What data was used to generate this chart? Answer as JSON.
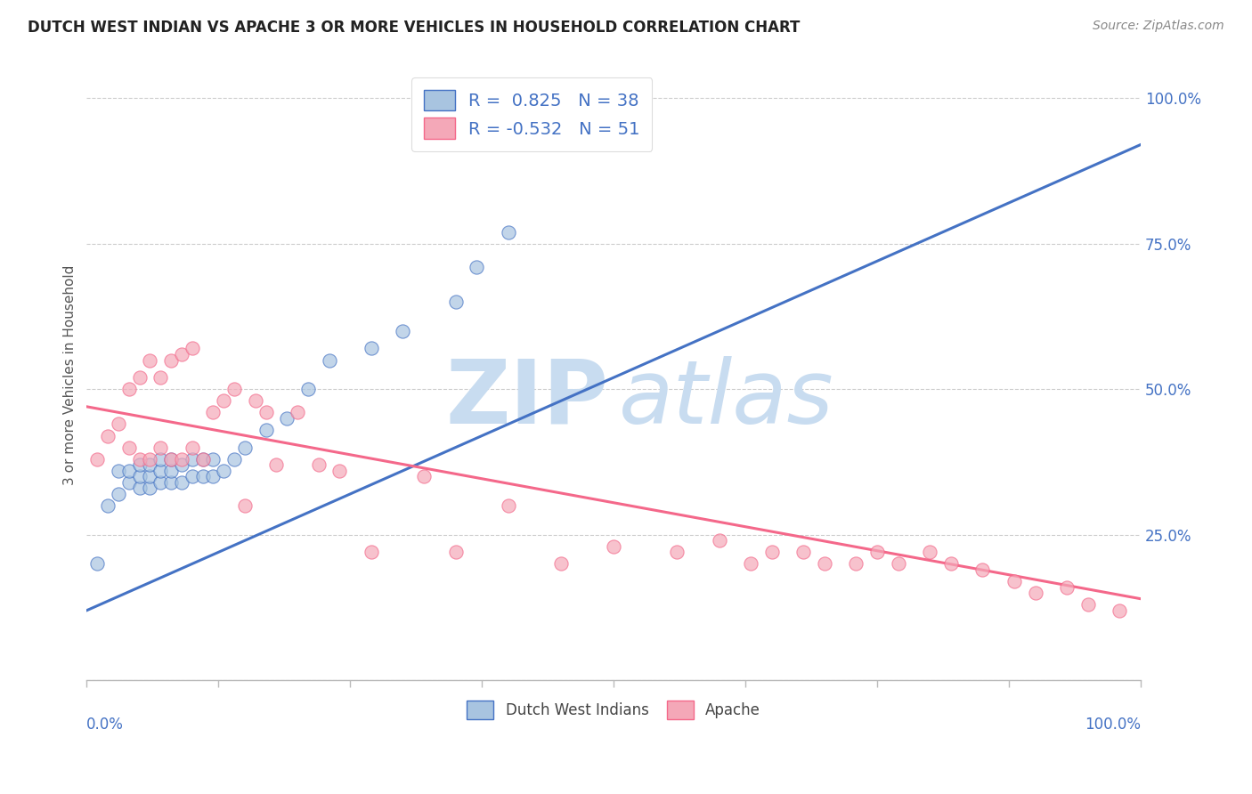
{
  "title": "DUTCH WEST INDIAN VS APACHE 3 OR MORE VEHICLES IN HOUSEHOLD CORRELATION CHART",
  "source": "Source: ZipAtlas.com",
  "ylabel": "3 or more Vehicles in Household",
  "legend_blue_r": "0.825",
  "legend_blue_n": "38",
  "legend_pink_r": "-0.532",
  "legend_pink_n": "51",
  "legend_label_blue": "Dutch West Indians",
  "legend_label_pink": "Apache",
  "blue_color": "#A8C4E0",
  "pink_color": "#F4A8B8",
  "blue_line_color": "#4472C4",
  "pink_line_color": "#F4688A",
  "title_color": "#222222",
  "source_color": "#888888",
  "axis_label_color": "#4472C4",
  "grid_color": "#CCCCCC",
  "background_color": "#FFFFFF",
  "blue_scatter_x": [
    0.01,
    0.02,
    0.03,
    0.03,
    0.04,
    0.04,
    0.05,
    0.05,
    0.05,
    0.06,
    0.06,
    0.06,
    0.07,
    0.07,
    0.07,
    0.08,
    0.08,
    0.08,
    0.09,
    0.09,
    0.1,
    0.1,
    0.11,
    0.11,
    0.12,
    0.12,
    0.13,
    0.14,
    0.15,
    0.17,
    0.19,
    0.21,
    0.23,
    0.27,
    0.3,
    0.35,
    0.37,
    0.4
  ],
  "blue_scatter_y": [
    0.2,
    0.3,
    0.32,
    0.36,
    0.34,
    0.36,
    0.33,
    0.35,
    0.37,
    0.33,
    0.35,
    0.37,
    0.34,
    0.36,
    0.38,
    0.34,
    0.36,
    0.38,
    0.34,
    0.37,
    0.35,
    0.38,
    0.35,
    0.38,
    0.35,
    0.38,
    0.36,
    0.38,
    0.4,
    0.43,
    0.45,
    0.5,
    0.55,
    0.57,
    0.6,
    0.65,
    0.71,
    0.77
  ],
  "pink_scatter_x": [
    0.01,
    0.02,
    0.03,
    0.04,
    0.04,
    0.05,
    0.05,
    0.06,
    0.06,
    0.07,
    0.07,
    0.08,
    0.08,
    0.09,
    0.09,
    0.1,
    0.1,
    0.11,
    0.12,
    0.13,
    0.14,
    0.15,
    0.16,
    0.17,
    0.18,
    0.2,
    0.22,
    0.24,
    0.27,
    0.32,
    0.35,
    0.4,
    0.45,
    0.5,
    0.56,
    0.6,
    0.63,
    0.65,
    0.68,
    0.7,
    0.73,
    0.75,
    0.77,
    0.8,
    0.82,
    0.85,
    0.88,
    0.9,
    0.93,
    0.95,
    0.98
  ],
  "pink_scatter_y": [
    0.38,
    0.42,
    0.44,
    0.4,
    0.5,
    0.38,
    0.52,
    0.38,
    0.55,
    0.4,
    0.52,
    0.38,
    0.55,
    0.38,
    0.56,
    0.4,
    0.57,
    0.38,
    0.46,
    0.48,
    0.5,
    0.3,
    0.48,
    0.46,
    0.37,
    0.46,
    0.37,
    0.36,
    0.22,
    0.35,
    0.22,
    0.3,
    0.2,
    0.23,
    0.22,
    0.24,
    0.2,
    0.22,
    0.22,
    0.2,
    0.2,
    0.22,
    0.2,
    0.22,
    0.2,
    0.19,
    0.17,
    0.15,
    0.16,
    0.13,
    0.12
  ],
  "blue_line_x": [
    0.0,
    1.0
  ],
  "blue_line_y": [
    0.12,
    0.92
  ],
  "pink_line_x": [
    0.0,
    1.0
  ],
  "pink_line_y": [
    0.47,
    0.14
  ],
  "xlim": [
    0.0,
    1.0
  ],
  "ylim": [
    0.0,
    1.05
  ],
  "yticks": [
    0.0,
    0.25,
    0.5,
    0.75,
    1.0
  ],
  "ytick_labels": [
    "",
    "25.0%",
    "50.0%",
    "75.0%",
    "100.0%"
  ]
}
